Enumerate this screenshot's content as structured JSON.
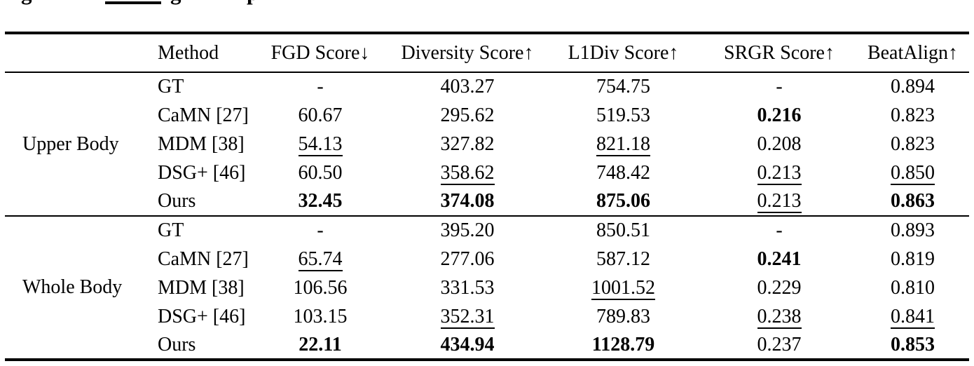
{
  "caption": {
    "fragment_1": "g",
    "fragment_2": "g",
    "fragment_3": "p"
  },
  "table": {
    "headers": {
      "group": "",
      "method": "Method",
      "fgd": "FGD Score↓",
      "diversity": "Diversity Score↑",
      "l1div": "L1Div Score↑",
      "srgr": "SRGR Score↑",
      "beatalign": "BeatAlign↑"
    },
    "groups": [
      {
        "label": "Upper Body",
        "rows": [
          {
            "method": "GT",
            "fgd": {
              "text": "-",
              "style": "n"
            },
            "diversity": {
              "text": "403.27",
              "style": "n"
            },
            "l1div": {
              "text": "754.75",
              "style": "n"
            },
            "srgr": {
              "text": "-",
              "style": "n"
            },
            "beatalign": {
              "text": "0.894",
              "style": "n"
            }
          },
          {
            "method": "CaMN [27]",
            "fgd": {
              "text": "60.67",
              "style": "n"
            },
            "diversity": {
              "text": "295.62",
              "style": "n"
            },
            "l1div": {
              "text": "519.53",
              "style": "n"
            },
            "srgr": {
              "text": "0.216",
              "style": "b"
            },
            "beatalign": {
              "text": "0.823",
              "style": "n"
            }
          },
          {
            "method": "MDM [38]",
            "fgd": {
              "text": "54.13",
              "style": "u"
            },
            "diversity": {
              "text": "327.82",
              "style": "n"
            },
            "l1div": {
              "text": "821.18",
              "style": "u"
            },
            "srgr": {
              "text": "0.208",
              "style": "n"
            },
            "beatalign": {
              "text": "0.823",
              "style": "n"
            }
          },
          {
            "method": "DSG+ [46]",
            "fgd": {
              "text": "60.50",
              "style": "n"
            },
            "diversity": {
              "text": "358.62",
              "style": "u"
            },
            "l1div": {
              "text": "748.42",
              "style": "n"
            },
            "srgr": {
              "text": "0.213",
              "style": "u"
            },
            "beatalign": {
              "text": "0.850",
              "style": "u"
            }
          },
          {
            "method": "Ours",
            "fgd": {
              "text": "32.45",
              "style": "b"
            },
            "diversity": {
              "text": "374.08",
              "style": "b"
            },
            "l1div": {
              "text": "875.06",
              "style": "b"
            },
            "srgr": {
              "text": "0.213",
              "style": "u"
            },
            "beatalign": {
              "text": "0.863",
              "style": "b"
            }
          }
        ]
      },
      {
        "label": "Whole Body",
        "rows": [
          {
            "method": "GT",
            "fgd": {
              "text": "-",
              "style": "n"
            },
            "diversity": {
              "text": "395.20",
              "style": "n"
            },
            "l1div": {
              "text": "850.51",
              "style": "n"
            },
            "srgr": {
              "text": "-",
              "style": "n"
            },
            "beatalign": {
              "text": "0.893",
              "style": "n"
            }
          },
          {
            "method": "CaMN [27]",
            "fgd": {
              "text": "65.74",
              "style": "u"
            },
            "diversity": {
              "text": "277.06",
              "style": "n"
            },
            "l1div": {
              "text": "587.12",
              "style": "n"
            },
            "srgr": {
              "text": "0.241",
              "style": "b"
            },
            "beatalign": {
              "text": "0.819",
              "style": "n"
            }
          },
          {
            "method": "MDM [38]",
            "fgd": {
              "text": "106.56",
              "style": "n"
            },
            "diversity": {
              "text": "331.53",
              "style": "n"
            },
            "l1div": {
              "text": "1001.52",
              "style": "u"
            },
            "srgr": {
              "text": "0.229",
              "style": "n"
            },
            "beatalign": {
              "text": "0.810",
              "style": "n"
            }
          },
          {
            "method": "DSG+ [46]",
            "fgd": {
              "text": "103.15",
              "style": "n"
            },
            "diversity": {
              "text": "352.31",
              "style": "u"
            },
            "l1div": {
              "text": "789.83",
              "style": "n"
            },
            "srgr": {
              "text": "0.238",
              "style": "u"
            },
            "beatalign": {
              "text": "0.841",
              "style": "u"
            }
          },
          {
            "method": "Ours",
            "fgd": {
              "text": "22.11",
              "style": "b"
            },
            "diversity": {
              "text": "434.94",
              "style": "b"
            },
            "l1div": {
              "text": "1128.79",
              "style": "b"
            },
            "srgr": {
              "text": "0.237",
              "style": "n"
            },
            "beatalign": {
              "text": "0.853",
              "style": "b"
            }
          }
        ]
      }
    ]
  }
}
